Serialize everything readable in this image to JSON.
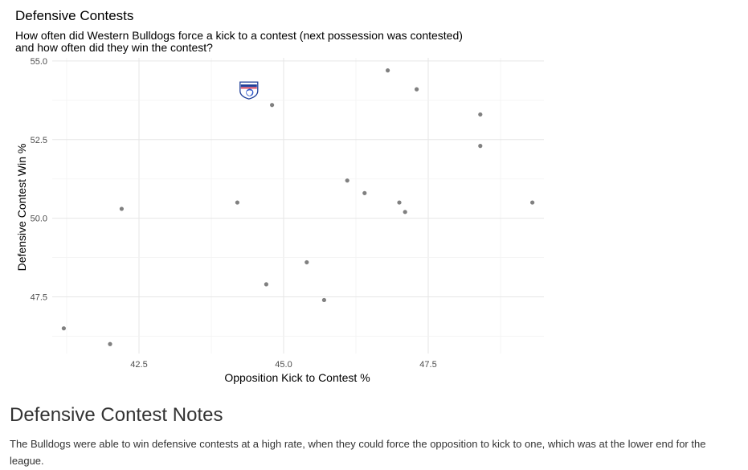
{
  "chart_data": {
    "type": "scatter",
    "title": "Defensive Contests",
    "subtitle": [
      "How often did Western Bulldogs force a kick to a contest (next possession was contested)",
      "and how often did they win the contest?"
    ],
    "xlabel": "Opposition Kick to Contest %",
    "ylabel": "Defensive Contest Win %",
    "xlim": [
      41.0,
      49.5
    ],
    "ylim": [
      45.7,
      55.1
    ],
    "xticks": [
      42.5,
      45.0,
      47.5
    ],
    "xtick_labels": [
      "42.5",
      "45.0",
      "47.5"
    ],
    "yticks": [
      47.5,
      50.0,
      52.5,
      55.0
    ],
    "ytick_labels": [
      "47.5",
      "50.0",
      "52.5",
      "55.0"
    ],
    "grid": true,
    "point_color": "#808080",
    "highlight": {
      "name": "Western Bulldogs",
      "x": 44.4,
      "y": 54.1,
      "marker": "team-logo"
    },
    "points": [
      {
        "x": 41.2,
        "y": 46.5
      },
      {
        "x": 42.0,
        "y": 46.0
      },
      {
        "x": 42.2,
        "y": 50.3
      },
      {
        "x": 44.2,
        "y": 50.5
      },
      {
        "x": 44.7,
        "y": 47.9
      },
      {
        "x": 44.8,
        "y": 53.6
      },
      {
        "x": 45.4,
        "y": 48.6
      },
      {
        "x": 45.7,
        "y": 47.4
      },
      {
        "x": 46.1,
        "y": 51.2
      },
      {
        "x": 46.4,
        "y": 50.8
      },
      {
        "x": 46.8,
        "y": 54.7
      },
      {
        "x": 47.0,
        "y": 50.5
      },
      {
        "x": 47.1,
        "y": 50.2
      },
      {
        "x": 47.3,
        "y": 54.1
      },
      {
        "x": 48.4,
        "y": 53.3
      },
      {
        "x": 48.4,
        "y": 52.3
      },
      {
        "x": 49.3,
        "y": 50.5
      }
    ]
  },
  "notes": {
    "heading": "Defensive Contest Notes",
    "body": "The Bulldogs were able to win defensive contests at a high rate, when they could force the opposition to kick to one, which was at the lower end for the league."
  }
}
